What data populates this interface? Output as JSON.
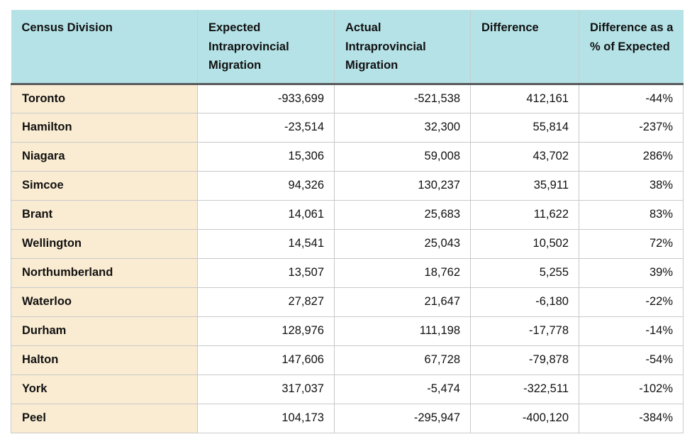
{
  "colors": {
    "header_bg": "#b5e2e6",
    "division_column_bg": "#faecd2",
    "header_divider": "#595a5c",
    "grid_border": "#c9c9c9",
    "cell_bg": "#ffffff",
    "text": "#111111"
  },
  "chart_data": {
    "type": "table",
    "columns": [
      "Census Division",
      "Expected Intraprovincial Migration",
      "Actual Intraprovincial Migration",
      "Difference",
      "Difference as a % of Expected"
    ],
    "rows": [
      {
        "division": "Toronto",
        "expected": "-933,699",
        "actual": "-521,538",
        "difference": "412,161",
        "pct_of_expected": "-44%"
      },
      {
        "division": "Hamilton",
        "expected": "-23,514",
        "actual": "32,300",
        "difference": "55,814",
        "pct_of_expected": "-237%"
      },
      {
        "division": "Niagara",
        "expected": "15,306",
        "actual": "59,008",
        "difference": "43,702",
        "pct_of_expected": "286%"
      },
      {
        "division": "Simcoe",
        "expected": "94,326",
        "actual": "130,237",
        "difference": "35,911",
        "pct_of_expected": "38%"
      },
      {
        "division": "Brant",
        "expected": "14,061",
        "actual": "25,683",
        "difference": "11,622",
        "pct_of_expected": "83%"
      },
      {
        "division": "Wellington",
        "expected": "14,541",
        "actual": "25,043",
        "difference": "10,502",
        "pct_of_expected": "72%"
      },
      {
        "division": "Northumberland",
        "expected": "13,507",
        "actual": "18,762",
        "difference": "5,255",
        "pct_of_expected": "39%"
      },
      {
        "division": "Waterloo",
        "expected": "27,827",
        "actual": "21,647",
        "difference": "-6,180",
        "pct_of_expected": "-22%"
      },
      {
        "division": "Durham",
        "expected": "128,976",
        "actual": "111,198",
        "difference": "-17,778",
        "pct_of_expected": "-14%"
      },
      {
        "division": "Halton",
        "expected": "147,606",
        "actual": "67,728",
        "difference": "-79,878",
        "pct_of_expected": "-54%"
      },
      {
        "division": "York",
        "expected": "317,037",
        "actual": "-5,474",
        "difference": "-322,511",
        "pct_of_expected": "-102%"
      },
      {
        "division": "Peel",
        "expected": "104,173",
        "actual": "-295,947",
        "difference": "-400,120",
        "pct_of_expected": "-384%"
      }
    ]
  }
}
